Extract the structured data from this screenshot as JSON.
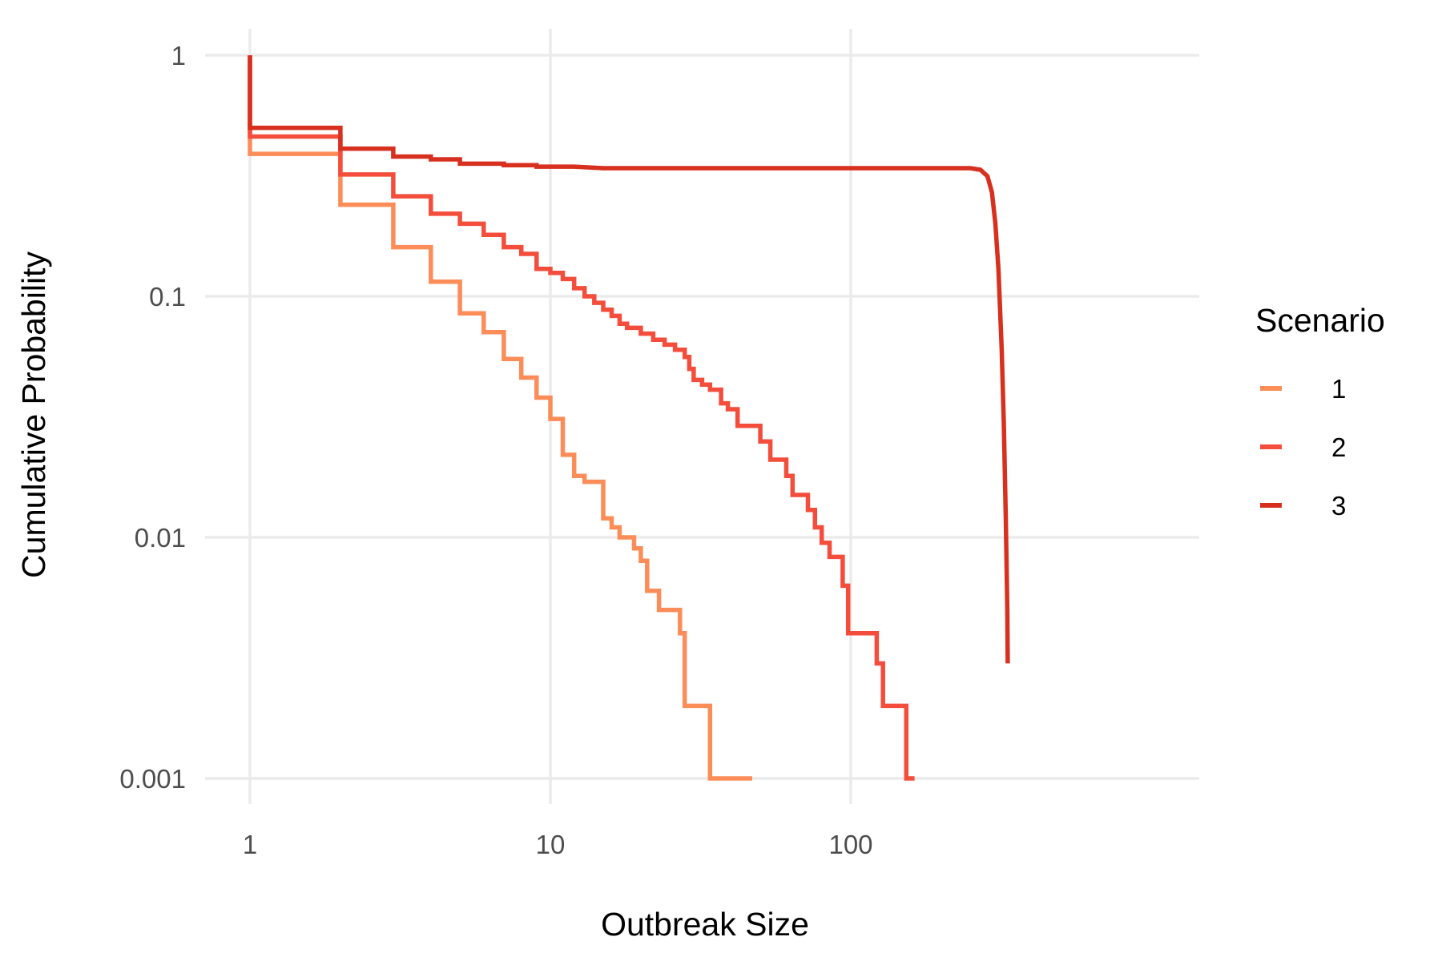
{
  "chart_data": {
    "type": "line",
    "step": true,
    "xlabel": "Outbreak Size",
    "ylabel": "Cumulative Probability",
    "x_scale": "log10",
    "y_scale": "log10",
    "xlim": [
      1,
      1000
    ],
    "ylim": [
      0.001,
      1
    ],
    "x_ticks": [
      {
        "value": 1,
        "label": "1"
      },
      {
        "value": 10,
        "label": "10"
      },
      {
        "value": 100,
        "label": "100"
      }
    ],
    "y_ticks": [
      {
        "value": 1,
        "label": "1"
      },
      {
        "value": 0.1,
        "label": "0.1"
      },
      {
        "value": 0.01,
        "label": "0.01"
      },
      {
        "value": 0.001,
        "label": "0.001"
      }
    ],
    "grid": true,
    "legend": {
      "title": "Scenario",
      "position": "right"
    },
    "series": [
      {
        "name": "1",
        "color": "#FC8D59",
        "points": [
          [
            1,
            1
          ],
          [
            1,
            0.39
          ],
          [
            2,
            0.39
          ],
          [
            2,
            0.24
          ],
          [
            3,
            0.24
          ],
          [
            3,
            0.16
          ],
          [
            4,
            0.16
          ],
          [
            4,
            0.115
          ],
          [
            5,
            0.115
          ],
          [
            5,
            0.085
          ],
          [
            6,
            0.085
          ],
          [
            6,
            0.071
          ],
          [
            7,
            0.071
          ],
          [
            7,
            0.055
          ],
          [
            8,
            0.055
          ],
          [
            8,
            0.046
          ],
          [
            9,
            0.046
          ],
          [
            9,
            0.038
          ],
          [
            10,
            0.038
          ],
          [
            10,
            0.031
          ],
          [
            11,
            0.031
          ],
          [
            11,
            0.022
          ],
          [
            12,
            0.022
          ],
          [
            12,
            0.018
          ],
          [
            13,
            0.018
          ],
          [
            13,
            0.017
          ],
          [
            15,
            0.017
          ],
          [
            15,
            0.012
          ],
          [
            16,
            0.012
          ],
          [
            16,
            0.011
          ],
          [
            17,
            0.011
          ],
          [
            17,
            0.01
          ],
          [
            19,
            0.01
          ],
          [
            19,
            0.009
          ],
          [
            20,
            0.009
          ],
          [
            20,
            0.008
          ],
          [
            21,
            0.008
          ],
          [
            21,
            0.006
          ],
          [
            23,
            0.006
          ],
          [
            23,
            0.005
          ],
          [
            27,
            0.005
          ],
          [
            27,
            0.004
          ],
          [
            28,
            0.004
          ],
          [
            28,
            0.002
          ],
          [
            34,
            0.002
          ],
          [
            34,
            0.001
          ],
          [
            47,
            0.001
          ]
        ]
      },
      {
        "name": "2",
        "color": "#F44D3C",
        "points": [
          [
            1,
            1
          ],
          [
            1,
            0.46
          ],
          [
            2,
            0.46
          ],
          [
            2,
            0.32
          ],
          [
            3,
            0.32
          ],
          [
            3,
            0.26
          ],
          [
            4,
            0.26
          ],
          [
            4,
            0.22
          ],
          [
            5,
            0.22
          ],
          [
            5,
            0.2
          ],
          [
            6,
            0.2
          ],
          [
            6,
            0.18
          ],
          [
            7,
            0.18
          ],
          [
            7,
            0.16
          ],
          [
            8,
            0.16
          ],
          [
            8,
            0.15
          ],
          [
            9,
            0.15
          ],
          [
            9,
            0.13
          ],
          [
            10,
            0.13
          ],
          [
            10,
            0.125
          ],
          [
            11,
            0.125
          ],
          [
            11,
            0.118
          ],
          [
            12,
            0.118
          ],
          [
            12,
            0.108
          ],
          [
            13,
            0.108
          ],
          [
            13,
            0.1
          ],
          [
            14,
            0.1
          ],
          [
            14,
            0.094
          ],
          [
            15,
            0.094
          ],
          [
            15,
            0.088
          ],
          [
            16,
            0.088
          ],
          [
            16,
            0.083
          ],
          [
            17,
            0.083
          ],
          [
            17,
            0.077
          ],
          [
            18,
            0.077
          ],
          [
            18,
            0.074
          ],
          [
            20,
            0.074
          ],
          [
            20,
            0.07
          ],
          [
            22,
            0.07
          ],
          [
            22,
            0.066
          ],
          [
            24,
            0.066
          ],
          [
            24,
            0.063
          ],
          [
            26,
            0.063
          ],
          [
            26,
            0.06
          ],
          [
            28,
            0.06
          ],
          [
            28,
            0.056
          ],
          [
            29,
            0.056
          ],
          [
            29,
            0.05
          ],
          [
            30,
            0.05
          ],
          [
            30,
            0.045
          ],
          [
            32,
            0.045
          ],
          [
            32,
            0.043
          ],
          [
            34,
            0.043
          ],
          [
            34,
            0.041
          ],
          [
            37,
            0.041
          ],
          [
            37,
            0.036
          ],
          [
            39,
            0.036
          ],
          [
            39,
            0.034
          ],
          [
            42,
            0.034
          ],
          [
            42,
            0.029
          ],
          [
            50,
            0.029
          ],
          [
            50,
            0.025
          ],
          [
            54,
            0.025
          ],
          [
            54,
            0.021
          ],
          [
            61,
            0.021
          ],
          [
            61,
            0.018
          ],
          [
            64,
            0.018
          ],
          [
            64,
            0.015
          ],
          [
            72,
            0.015
          ],
          [
            72,
            0.013
          ],
          [
            76,
            0.013
          ],
          [
            76,
            0.011
          ],
          [
            80,
            0.011
          ],
          [
            80,
            0.0095
          ],
          [
            85,
            0.0095
          ],
          [
            85,
            0.0083
          ],
          [
            94,
            0.0083
          ],
          [
            94,
            0.0063
          ],
          [
            98,
            0.0063
          ],
          [
            98,
            0.004
          ],
          [
            122,
            0.004
          ],
          [
            122,
            0.003
          ],
          [
            128,
            0.003
          ],
          [
            128,
            0.002
          ],
          [
            153,
            0.002
          ],
          [
            153,
            0.001
          ],
          [
            163,
            0.001
          ]
        ]
      },
      {
        "name": "3",
        "color": "#D7301F",
        "points": [
          [
            1,
            1
          ],
          [
            1,
            0.5
          ],
          [
            2,
            0.5
          ],
          [
            2,
            0.41
          ],
          [
            3,
            0.41
          ],
          [
            3,
            0.38
          ],
          [
            4,
            0.38
          ],
          [
            4,
            0.37
          ],
          [
            5,
            0.37
          ],
          [
            5,
            0.355
          ],
          [
            7,
            0.355
          ],
          [
            7,
            0.35
          ],
          [
            9,
            0.35
          ],
          [
            9,
            0.345
          ],
          [
            12,
            0.345
          ],
          [
            15,
            0.34
          ],
          [
            100,
            0.34
          ],
          [
            250,
            0.34
          ],
          [
            270,
            0.335
          ],
          [
            285,
            0.315
          ],
          [
            295,
            0.27
          ],
          [
            303,
            0.2
          ],
          [
            310,
            0.13
          ],
          [
            318,
            0.06
          ],
          [
            323,
            0.03
          ],
          [
            328,
            0.012
          ],
          [
            332,
            0.005
          ],
          [
            333,
            0.003
          ]
        ]
      }
    ]
  }
}
